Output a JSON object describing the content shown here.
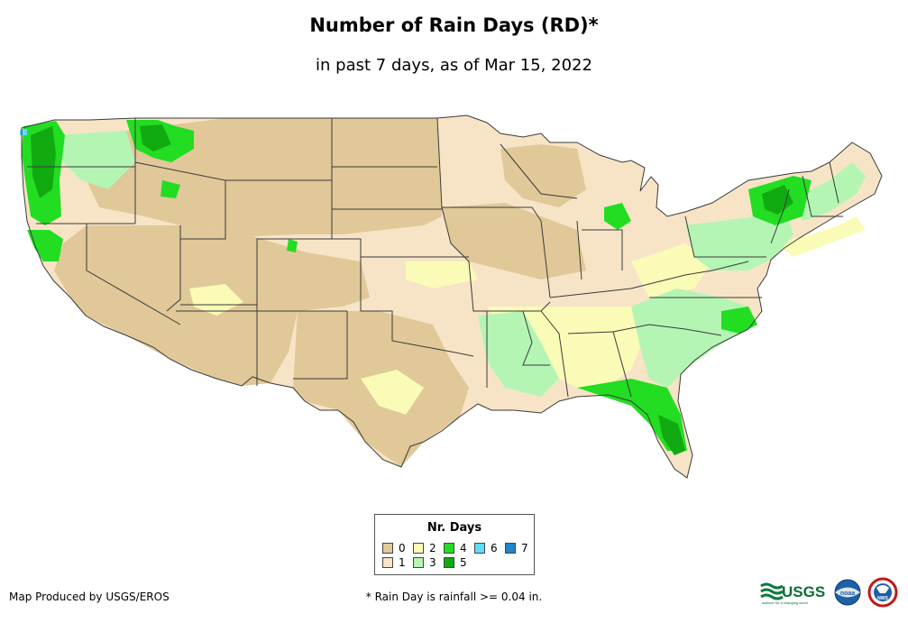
{
  "title": "Number of Rain Days (RD)*",
  "subtitle": "in past 7 days, as of Mar 15, 2022",
  "legend": {
    "title": "Nr. Days",
    "items": [
      {
        "label": "0",
        "color": "#e0c898"
      },
      {
        "label": "1",
        "color": "#f7e4c6"
      },
      {
        "label": "2",
        "color": "#fbfbb8"
      },
      {
        "label": "3",
        "color": "#b4f5b4"
      },
      {
        "label": "4",
        "color": "#22dd22"
      },
      {
        "label": "5",
        "color": "#11aa11"
      },
      {
        "label": "6",
        "color": "#5fdcf6"
      },
      {
        "label": "7",
        "color": "#1f84c8"
      }
    ]
  },
  "footer": {
    "producer": "Map Produced by USGS/EROS",
    "note": "* Rain Day is rainfall >= 0.04 in."
  },
  "logos": {
    "usgs": "USGS",
    "usgs_tagline": "science for a changing world",
    "noaa": "noaa",
    "nws": "NWS"
  },
  "colors": {
    "state_border": "#3a3a3a",
    "background": "#ffffff"
  }
}
